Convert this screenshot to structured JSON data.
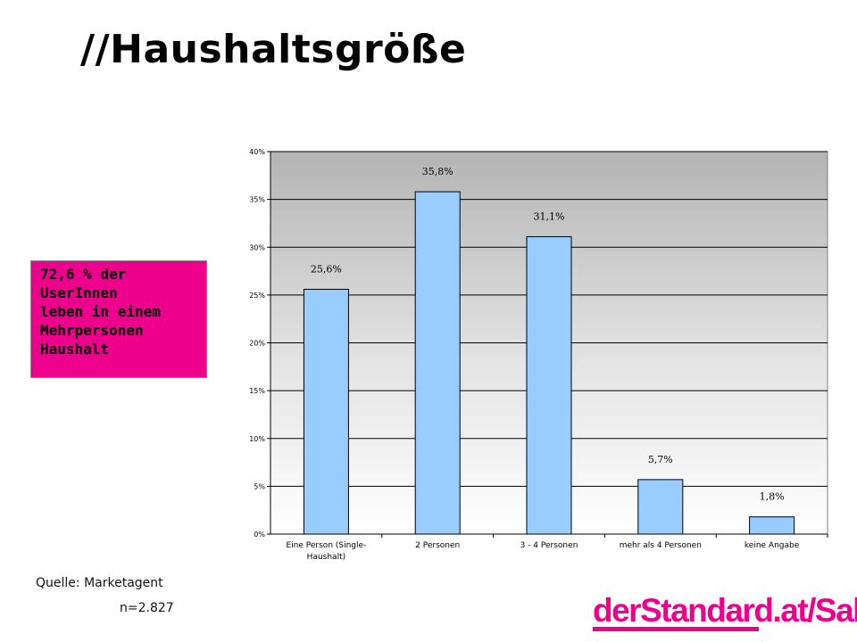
{
  "page": {
    "title": "//Haushaltsgröße",
    "callout_lines": [
      "72,6 % der",
      "UserInnen",
      "leben in einem",
      "Mehrpersonen",
      "Haushalt"
    ],
    "source": "Quelle: Marketagent",
    "sample": "n=2.827",
    "logo": "derStandard.at/Sales",
    "accent_color": "#ec008c"
  },
  "chart_data": {
    "type": "bar",
    "categories": [
      [
        "Eine Person (Single-",
        "Haushalt)"
      ],
      [
        "2 Personen"
      ],
      [
        "3 - 4 Personen"
      ],
      [
        "mehr als 4 Personen"
      ],
      [
        "keine Angabe"
      ]
    ],
    "values": [
      25.6,
      35.8,
      31.1,
      5.7,
      1.8
    ],
    "data_labels": [
      "25,6%",
      "35,8%",
      "31,1%",
      "5,7%",
      "1,8%"
    ],
    "yticks": [
      "0%",
      "5%",
      "10%",
      "15%",
      "20%",
      "25%",
      "30%",
      "35%",
      "40%"
    ],
    "ylim": [
      0,
      40
    ],
    "ytick_step": 5,
    "grid": true,
    "bar_color": "#99ccff",
    "plot_background": "gradient gray top to white bottom"
  }
}
